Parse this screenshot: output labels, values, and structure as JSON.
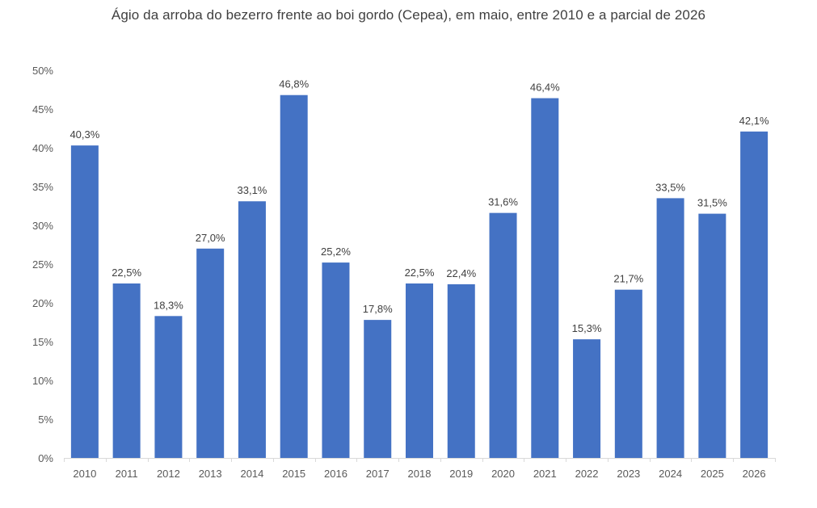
{
  "chart_data": {
    "type": "bar",
    "title": "Ágio da arroba do bezerro frente ao boi gordo (Cepea), em maio, entre 2010 e a parcial de 2026",
    "xlabel": "",
    "ylabel": "",
    "categories": [
      "2010",
      "2011",
      "2012",
      "2013",
      "2014",
      "2015",
      "2016",
      "2017",
      "2018",
      "2019",
      "2020",
      "2021",
      "2022",
      "2023",
      "2024",
      "2025",
      "2026"
    ],
    "values": [
      40.3,
      22.5,
      18.3,
      27.0,
      33.1,
      46.8,
      25.2,
      17.8,
      22.5,
      22.4,
      31.6,
      46.4,
      15.3,
      21.7,
      33.5,
      31.5,
      42.1
    ],
    "data_labels": [
      "40,3%",
      "22,5%",
      "18,3%",
      "27,0%",
      "33,1%",
      "46,8%",
      "25,2%",
      "17,8%",
      "22,5%",
      "22,4%",
      "31,6%",
      "46,4%",
      "15,3%",
      "21,7%",
      "33,5%",
      "31,5%",
      "42,1%"
    ],
    "ylim": [
      0,
      50
    ],
    "y_ticks": [
      0,
      5,
      10,
      15,
      20,
      25,
      30,
      35,
      40,
      45,
      50
    ],
    "y_tick_labels": [
      "0%",
      "5%",
      "10%",
      "15%",
      "20%",
      "25%",
      "30%",
      "35%",
      "40%",
      "45%",
      "50%"
    ],
    "grid": false,
    "legend": "none",
    "bar_color": "#4472C4",
    "axis_color": "#D9D9D9"
  }
}
